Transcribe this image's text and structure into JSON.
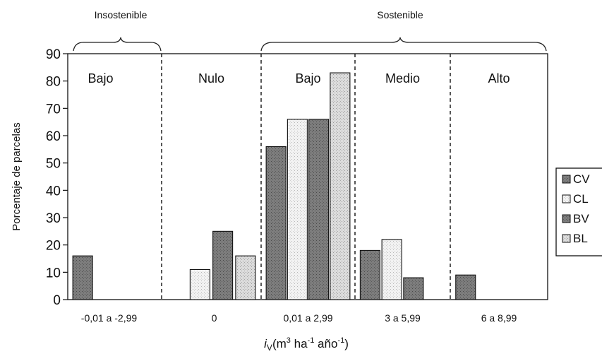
{
  "chart_data": {
    "type": "bar",
    "categories": [
      "-0,01 a -2,99",
      "0",
      "0,01 a 2,99",
      "3 a 5,99",
      "6 a 8,99"
    ],
    "series": [
      {
        "name": "CV",
        "values": [
          16,
          0,
          56,
          18,
          9
        ],
        "color": "#7a7a7a",
        "pattern": "dark-stipple"
      },
      {
        "name": "CL",
        "values": [
          0,
          11,
          66,
          22,
          0
        ],
        "color": "#f4f4f4",
        "pattern": "light-stipple"
      },
      {
        "name": "BV",
        "values": [
          0,
          25,
          66,
          8,
          0
        ],
        "color": "#8a8a8a",
        "pattern": "dark-stipple"
      },
      {
        "name": "BL",
        "values": [
          0,
          16,
          83,
          0,
          0
        ],
        "color": "#e2e2e2",
        "pattern": "light-stipple"
      }
    ],
    "ylim": [
      0,
      90
    ],
    "yticks": [
      0,
      10,
      20,
      30,
      40,
      50,
      60,
      70,
      80,
      90
    ],
    "ylabel": "Porcentaje de parcelas",
    "xlabel": "i_V(m³ ha⁻¹ año⁻¹)",
    "xlabel_parts": {
      "var": "i",
      "sub": "V",
      "open": "(m",
      "sup1": "3",
      "ha": " ha",
      "sup2": "-1",
      "ano": " año",
      "sup3": "-1",
      "close": ")"
    },
    "band_labels": [
      "Bajo",
      "Nulo",
      "Bajo",
      "Medio",
      "Alto"
    ],
    "group_labels": {
      "left": "Insostenible",
      "right": "Sostenible"
    },
    "legend_position": "right",
    "grid": false
  }
}
